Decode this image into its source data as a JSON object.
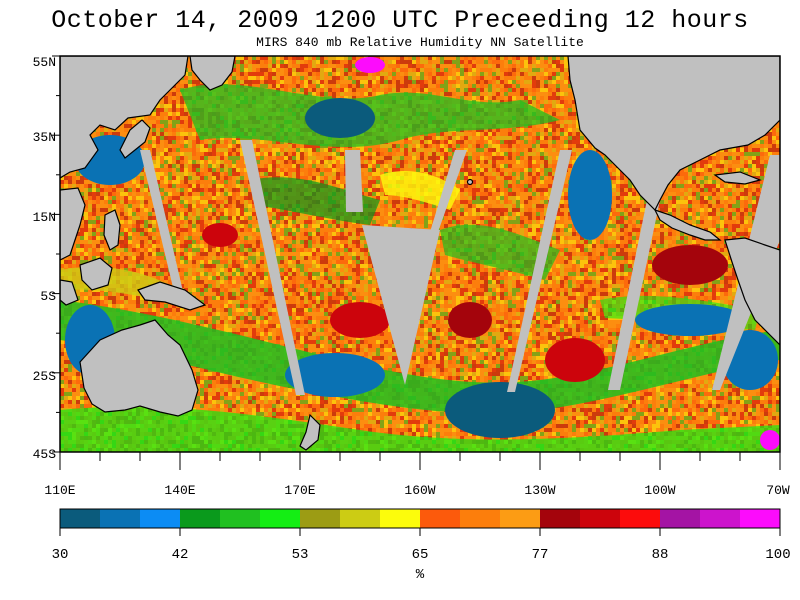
{
  "title": "October 14, 2009  1200 UTC Preceeding 12 hours",
  "subtitle": "MIRS 840 mb Relative Humidity NN Satellite",
  "lat_labels": [
    "55N",
    "35N",
    "15N",
    "5S",
    "25S",
    "45S"
  ],
  "lon_labels": [
    "110E",
    "140E",
    "170E",
    "160W",
    "130W",
    "100W",
    "70W"
  ],
  "colorbar": {
    "ticks": [
      "30",
      "42",
      "53",
      "65",
      "77",
      "88",
      "100"
    ],
    "unit": "%",
    "colors": [
      "#0b5b7c",
      "#0a72b4",
      "#0c8cf4",
      "#0a9a1c",
      "#20c020",
      "#14ee14",
      "#9c9c14",
      "#cccc14",
      "#fcfc0c",
      "#fc5a0c",
      "#fc7e0c",
      "#fc9c14",
      "#a4040c",
      "#cc040c",
      "#fc0c0c",
      "#a414a4",
      "#cc14cc",
      "#fc0cfc"
    ]
  },
  "colors": {
    "land": "#c0c0c0",
    "coast": "#000000"
  }
}
